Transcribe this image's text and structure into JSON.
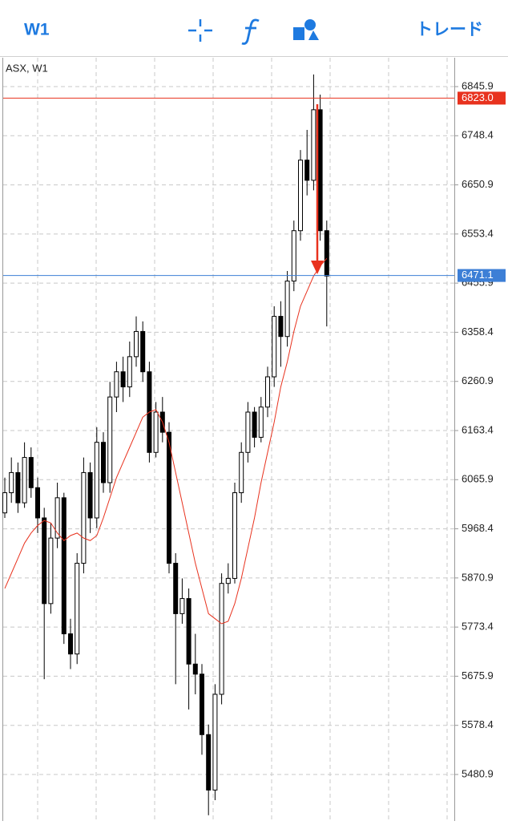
{
  "toolbar": {
    "timeframe": "W1",
    "trade": "トレード"
  },
  "chart_data": {
    "type": "candlestick",
    "title": "ASX, W1",
    "open": [
      6000,
      6040,
      6080,
      6020,
      6110,
      6050,
      5990,
      5820,
      5950,
      6030,
      5760,
      5720,
      5900,
      6080,
      5990,
      6140,
      6060,
      6230,
      6280,
      6250,
      6310,
      6360,
      6280,
      6120,
      6200,
      6160,
      5900,
      5800,
      5830,
      5700,
      5680,
      5560,
      5450,
      5640,
      5860,
      5870,
      6040,
      6120,
      6200,
      6150,
      6210,
      6270,
      6390,
      6350,
      6460,
      6560,
      6700,
      6660,
      6800,
      6560
    ],
    "high": [
      6070,
      6110,
      6100,
      6140,
      6130,
      6070,
      6010,
      5980,
      6060,
      6040,
      5790,
      5920,
      6110,
      6100,
      6170,
      6160,
      6260,
      6300,
      6310,
      6340,
      6390,
      6380,
      6300,
      6220,
      6230,
      6180,
      5920,
      5870,
      5850,
      5760,
      5700,
      5580,
      5660,
      5880,
      5900,
      6060,
      6140,
      6220,
      6210,
      6230,
      6290,
      6410,
      6420,
      6480,
      6580,
      6720,
      6760,
      6870,
      6830,
      6580
    ],
    "low": [
      5990,
      6020,
      6000,
      6010,
      6030,
      5960,
      5670,
      5800,
      5930,
      5740,
      5690,
      5700,
      5880,
      5960,
      5970,
      6040,
      6040,
      6200,
      6220,
      6230,
      6290,
      6260,
      6100,
      6110,
      6140,
      5880,
      5660,
      5780,
      5610,
      5640,
      5520,
      5400,
      5430,
      5620,
      5840,
      5860,
      6020,
      6100,
      6130,
      6140,
      6190,
      6250,
      6290,
      6330,
      6440,
      6540,
      6630,
      6640,
      6540,
      6370
    ],
    "close": [
      6040,
      6080,
      6020,
      6110,
      6050,
      5990,
      5820,
      5950,
      6030,
      5760,
      5720,
      5900,
      6080,
      5990,
      6140,
      6060,
      6230,
      6280,
      6250,
      6310,
      6360,
      6280,
      6120,
      6200,
      6160,
      5900,
      5800,
      5830,
      5700,
      5680,
      5560,
      5450,
      5640,
      5860,
      5870,
      6040,
      6120,
      6200,
      6150,
      6210,
      6270,
      6390,
      6350,
      6460,
      6560,
      6700,
      6660,
      6800,
      6560,
      6470
    ],
    "ma": [
      5850,
      5880,
      5910,
      5940,
      5960,
      5975,
      5985,
      5980,
      5960,
      5945,
      5955,
      5960,
      5950,
      5945,
      5955,
      5990,
      6030,
      6070,
      6100,
      6130,
      6160,
      6190,
      6200,
      6205,
      6180,
      6140,
      6080,
      6020,
      5960,
      5900,
      5850,
      5800,
      5790,
      5780,
      5785,
      5820,
      5870,
      5930,
      5990,
      6060,
      6120,
      6180,
      6250,
      6300,
      6360,
      6410,
      6440,
      6470,
      6490,
      6505
    ],
    "ma_color": "#e8321e",
    "levels": [
      {
        "value": 6823.0,
        "label": "6823.0",
        "color": "#e8321e"
      },
      {
        "value": 6471.1,
        "label": "6471.1",
        "color": "#3d7fd6"
      }
    ],
    "ylim": [
      5388.6,
      6903.2
    ],
    "yticks": [
      6845.9,
      6748.4,
      6650.9,
      6553.4,
      6455.9,
      6358.4,
      6260.9,
      6163.4,
      6065.9,
      5968.4,
      5870.9,
      5773.4,
      5675.9,
      5578.4,
      5480.9
    ],
    "grid": true
  }
}
